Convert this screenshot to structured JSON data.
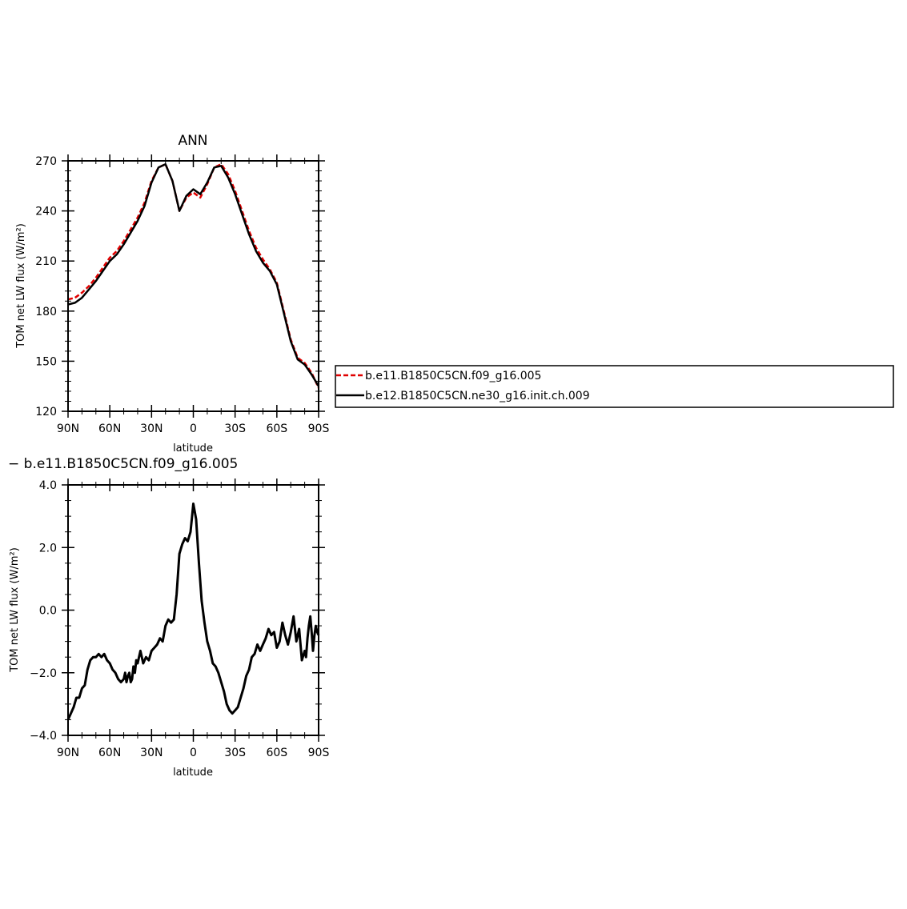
{
  "figure": {
    "legend": {
      "entries": [
        {
          "label": "b.e11.B1850C5CN.f09_g16.005",
          "color": "#e00000",
          "dash": "dashed"
        },
        {
          "label": "b.e12.B1850C5CN.ne30_g16.init.ch.009",
          "color": "#000000",
          "dash": "solid"
        }
      ]
    }
  },
  "chart_data": [
    {
      "type": "line",
      "title": "ANN",
      "xlabel": "latitude",
      "ylabel": "TOM net LW flux (W/m²)",
      "xlim": [
        90,
        -90
      ],
      "ylim": [
        120,
        270
      ],
      "x_ticks": [
        90,
        60,
        30,
        0,
        -30,
        -60,
        -90
      ],
      "x_tick_labels": [
        "90N",
        "60N",
        "30N",
        "0",
        "30S",
        "60S",
        "90S"
      ],
      "y_ticks": [
        120,
        150,
        180,
        210,
        240,
        270
      ],
      "y_tick_labels": [
        "120",
        "150",
        "180",
        "210",
        "240",
        "270"
      ],
      "x": [
        90,
        85,
        80,
        75,
        70,
        65,
        60,
        55,
        50,
        45,
        40,
        35,
        30,
        25,
        20,
        15,
        10,
        5,
        0,
        -5,
        -10,
        -15,
        -20,
        -25,
        -30,
        -35,
        -40,
        -45,
        -50,
        -55,
        -60,
        -65,
        -70,
        -75,
        -80,
        -85,
        -90
      ],
      "series": [
        {
          "name": "b.e11.B1850C5CN.f09_g16.005",
          "color": "#e00000",
          "dash": "dashed",
          "values": [
            187,
            188,
            191,
            195,
            200,
            206,
            212,
            216,
            222,
            229,
            236,
            245,
            258,
            266,
            268,
            258,
            240,
            248,
            251,
            248,
            256,
            266,
            268,
            262,
            252,
            240,
            228,
            218,
            211,
            205,
            197,
            180,
            163,
            152,
            149,
            143,
            134
          ]
        },
        {
          "name": "b.e12.B1850C5CN.ne30_g16.init.ch.009",
          "color": "#000000",
          "dash": "solid",
          "values": [
            184,
            185,
            188,
            193,
            198,
            204,
            210,
            214,
            220,
            227,
            234,
            243,
            257,
            266,
            268,
            258,
            240,
            249,
            253,
            250,
            257,
            266,
            267,
            260,
            250,
            238,
            226,
            216,
            209,
            204,
            196,
            179,
            162,
            151,
            148,
            142,
            135
          ]
        }
      ]
    },
    {
      "type": "line",
      "title": "− b.e11.B1850C5CN.f09_g16.005",
      "xlabel": "latitude",
      "ylabel": "TOM net LW flux (W/m²)",
      "xlim": [
        90,
        -90
      ],
      "ylim": [
        -4.0,
        4.0
      ],
      "x_ticks": [
        90,
        60,
        30,
        0,
        -30,
        -60,
        -90
      ],
      "x_tick_labels": [
        "90N",
        "60N",
        "30N",
        "0",
        "30S",
        "60S",
        "90S"
      ],
      "y_ticks": [
        -4.0,
        -2.0,
        0.0,
        2.0,
        4.0
      ],
      "y_tick_labels": [
        "−4.0",
        "−2.0",
        "0.0",
        "2.0",
        "4.0"
      ],
      "x": [
        90,
        88,
        86,
        84,
        82,
        80,
        78,
        76,
        74,
        72,
        70,
        68,
        66,
        64,
        62,
        60,
        58,
        56,
        54,
        52,
        50,
        49,
        48,
        47,
        46,
        45,
        44,
        43,
        42,
        41,
        40,
        38,
        36,
        34,
        32,
        30,
        28,
        26,
        24,
        22,
        20,
        18,
        16,
        14,
        12,
        10,
        8,
        6,
        4,
        2,
        0,
        -2,
        -4,
        -6,
        -8,
        -10,
        -12,
        -14,
        -16,
        -18,
        -20,
        -22,
        -24,
        -26,
        -28,
        -30,
        -32,
        -34,
        -36,
        -38,
        -40,
        -42,
        -44,
        -46,
        -48,
        -50,
        -52,
        -54,
        -56,
        -58,
        -60,
        -62,
        -64,
        -66,
        -68,
        -70,
        -72,
        -74,
        -76,
        -78,
        -80,
        -81,
        -82,
        -83,
        -84,
        -85,
        -86,
        -87,
        -88,
        -89,
        -90
      ],
      "series": [
        {
          "name": "",
          "color": "#000000",
          "dash": "solid",
          "values": [
            -3.5,
            -3.3,
            -3.1,
            -2.8,
            -2.8,
            -2.5,
            -2.4,
            -1.9,
            -1.6,
            -1.5,
            -1.5,
            -1.4,
            -1.5,
            -1.4,
            -1.6,
            -1.7,
            -1.9,
            -2.0,
            -2.2,
            -2.3,
            -2.2,
            -2.0,
            -2.3,
            -2.1,
            -2.0,
            -2.3,
            -2.2,
            -1.8,
            -2.0,
            -1.6,
            -1.7,
            -1.3,
            -1.7,
            -1.5,
            -1.6,
            -1.3,
            -1.2,
            -1.1,
            -0.9,
            -1.0,
            -0.5,
            -0.3,
            -0.4,
            -0.3,
            0.5,
            1.8,
            2.1,
            2.3,
            2.2,
            2.5,
            3.4,
            2.9,
            1.5,
            0.3,
            -0.4,
            -1.0,
            -1.3,
            -1.7,
            -1.8,
            -2.0,
            -2.3,
            -2.6,
            -3.0,
            -3.2,
            -3.3,
            -3.2,
            -3.1,
            -2.8,
            -2.5,
            -2.1,
            -1.9,
            -1.5,
            -1.4,
            -1.1,
            -1.3,
            -1.1,
            -0.9,
            -0.6,
            -0.8,
            -0.7,
            -1.2,
            -1.0,
            -0.4,
            -0.8,
            -1.1,
            -0.7,
            -0.2,
            -1.0,
            -0.6,
            -1.6,
            -1.3,
            -1.5,
            -0.9,
            -0.5,
            -0.2,
            -0.7,
            -1.3,
            -0.8,
            -0.5,
            -0.7,
            -0.8
          ]
        }
      ]
    }
  ]
}
